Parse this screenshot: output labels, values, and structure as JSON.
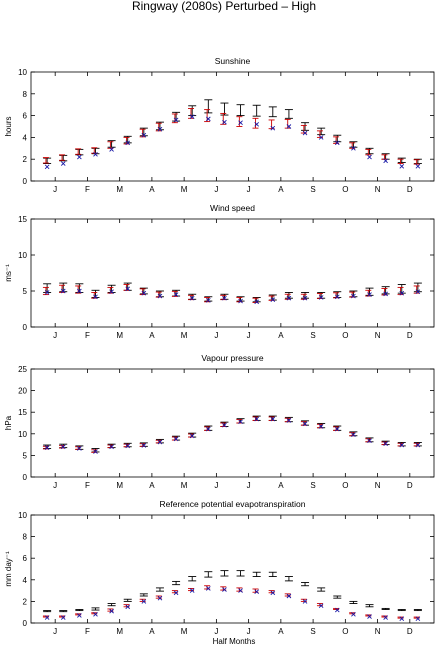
{
  "figure": {
    "title": "Ringway (2080s) Perturbed – High",
    "xlabel": "Half Months"
  },
  "colors": {
    "observed": "#000000",
    "simulated": "#cc0000",
    "perturbed": "#1a1aa6"
  },
  "chart_data": [
    {
      "type": "errorbar",
      "title": "Sunshine",
      "ylabel": "hours",
      "ylim": [
        0,
        10
      ],
      "yticks": [
        "0",
        "2",
        "4",
        "6",
        "8",
        "10"
      ],
      "xticks": [
        "J",
        "F",
        "M",
        "A",
        "M",
        "J",
        "J",
        "A",
        "S",
        "O",
        "N",
        "D"
      ],
      "series": [
        {
          "values": [
            1.85,
            2.1,
            2.65,
            2.75,
            3.4,
            3.8,
            4.5,
            5.05,
            5.9,
            6.45,
            6.85,
            6.6,
            6.5,
            6.45,
            6.35,
            6.15,
            5.0,
            4.55,
            3.9,
            3.35,
            2.75,
            2.25,
            1.9,
            1.8
          ],
          "err": [
            0.25,
            0.25,
            0.25,
            0.25,
            0.3,
            0.3,
            0.35,
            0.35,
            0.4,
            0.45,
            0.6,
            0.55,
            0.5,
            0.5,
            0.45,
            0.4,
            0.35,
            0.3,
            0.3,
            0.25,
            0.25,
            0.25,
            0.2,
            0.2
          ]
        },
        {
          "values": [
            1.9,
            2.15,
            2.7,
            2.8,
            3.3,
            3.7,
            4.4,
            4.95,
            5.75,
            6.2,
            6.0,
            5.7,
            5.45,
            5.3,
            5.2,
            5.25,
            4.75,
            4.3,
            3.75,
            3.25,
            2.65,
            2.2,
            1.8,
            1.75
          ],
          "err": [
            0.25,
            0.25,
            0.25,
            0.25,
            0.3,
            0.3,
            0.35,
            0.35,
            0.4,
            0.45,
            0.55,
            0.5,
            0.45,
            0.45,
            0.4,
            0.4,
            0.35,
            0.3,
            0.3,
            0.25,
            0.25,
            0.2,
            0.2,
            0.2
          ]
        },
        {
          "values": [
            1.3,
            1.6,
            2.2,
            2.45,
            2.9,
            3.5,
            4.2,
            4.75,
            5.6,
            5.9,
            5.7,
            5.4,
            5.35,
            5.2,
            4.85,
            5.0,
            4.4,
            4.0,
            3.5,
            3.0,
            2.2,
            1.85,
            1.35,
            1.35
          ]
        }
      ]
    },
    {
      "type": "errorbar",
      "title": "Wind speed",
      "ylabel": "ms⁻¹",
      "ylim": [
        0,
        15
      ],
      "yticks": [
        "0",
        "5",
        "10",
        "15"
      ],
      "xticks": [
        "J",
        "F",
        "M",
        "A",
        "M",
        "J",
        "J",
        "A",
        "S",
        "O",
        "N",
        "D"
      ],
      "series": [
        {
          "values": [
            5.4,
            5.5,
            5.4,
            4.6,
            5.3,
            5.6,
            5.0,
            4.6,
            4.7,
            4.2,
            3.9,
            4.2,
            3.9,
            3.8,
            4.1,
            4.4,
            4.4,
            4.4,
            4.5,
            4.6,
            4.9,
            5.1,
            5.3,
            5.5
          ],
          "err": [
            0.6,
            0.6,
            0.6,
            0.5,
            0.5,
            0.5,
            0.4,
            0.4,
            0.4,
            0.35,
            0.3,
            0.35,
            0.3,
            0.3,
            0.35,
            0.4,
            0.4,
            0.4,
            0.4,
            0.4,
            0.5,
            0.5,
            0.6,
            0.6
          ]
        },
        {
          "values": [
            5.0,
            5.3,
            5.2,
            4.4,
            5.1,
            5.5,
            4.9,
            4.5,
            4.6,
            4.1,
            3.8,
            4.1,
            3.8,
            3.7,
            4.0,
            4.2,
            4.2,
            4.3,
            4.4,
            4.5,
            4.7,
            4.9,
            5.0,
            5.2
          ],
          "err": [
            0.5,
            0.5,
            0.5,
            0.4,
            0.4,
            0.4,
            0.4,
            0.35,
            0.35,
            0.3,
            0.3,
            0.3,
            0.3,
            0.3,
            0.3,
            0.35,
            0.35,
            0.35,
            0.35,
            0.35,
            0.4,
            0.45,
            0.5,
            0.5
          ]
        },
        {
          "values": [
            4.8,
            5.0,
            5.0,
            4.2,
            4.9,
            5.3,
            4.7,
            4.3,
            4.5,
            4.0,
            3.7,
            4.0,
            3.6,
            3.5,
            3.8,
            4.0,
            4.0,
            4.1,
            4.2,
            4.3,
            4.5,
            4.6,
            4.7,
            4.9
          ]
        }
      ]
    },
    {
      "type": "errorbar",
      "title": "Vapour pressure",
      "ylabel": "hPa",
      "ylim": [
        0,
        25
      ],
      "yticks": [
        "0",
        "5",
        "10",
        "15",
        "20",
        "25"
      ],
      "xticks": [
        "J",
        "F",
        "M",
        "A",
        "M",
        "J",
        "J",
        "A",
        "S",
        "O",
        "N",
        "D"
      ],
      "series": [
        {
          "values": [
            7.0,
            7.2,
            6.8,
            6.2,
            7.2,
            7.4,
            7.5,
            8.3,
            9.0,
            9.7,
            11.3,
            12.2,
            13.0,
            13.6,
            13.6,
            13.3,
            12.5,
            11.9,
            11.3,
            10.0,
            8.6,
            7.9,
            7.6,
            7.6
          ],
          "err": [
            0.4,
            0.4,
            0.4,
            0.4,
            0.4,
            0.4,
            0.4,
            0.4,
            0.45,
            0.45,
            0.5,
            0.5,
            0.5,
            0.5,
            0.5,
            0.5,
            0.5,
            0.5,
            0.5,
            0.45,
            0.45,
            0.4,
            0.4,
            0.4
          ]
        },
        {
          "values": [
            6.8,
            7.0,
            6.7,
            6.0,
            7.1,
            7.3,
            7.4,
            8.2,
            8.9,
            9.6,
            11.2,
            12.1,
            12.9,
            13.5,
            13.5,
            13.2,
            12.4,
            11.8,
            11.2,
            9.9,
            8.5,
            7.8,
            7.5,
            7.5
          ],
          "err": [
            0.3,
            0.3,
            0.3,
            0.3,
            0.3,
            0.3,
            0.3,
            0.3,
            0.35,
            0.35,
            0.4,
            0.4,
            0.4,
            0.4,
            0.4,
            0.4,
            0.4,
            0.4,
            0.4,
            0.35,
            0.35,
            0.3,
            0.3,
            0.3
          ]
        },
        {
          "values": [
            6.8,
            7.0,
            6.6,
            5.9,
            7.0,
            7.2,
            7.3,
            8.1,
            8.8,
            9.5,
            11.1,
            12.0,
            12.8,
            13.4,
            13.4,
            13.1,
            12.3,
            11.7,
            11.1,
            9.8,
            8.4,
            7.7,
            7.4,
            7.4
          ]
        }
      ]
    },
    {
      "type": "errorbar",
      "title": "Reference potential evapotranspiration",
      "ylabel": "mm day⁻¹",
      "ylim": [
        0,
        10
      ],
      "yticks": [
        "0",
        "2",
        "4",
        "6",
        "8",
        "10"
      ],
      "xticks": [
        "J",
        "F",
        "M",
        "A",
        "M",
        "J",
        "J",
        "A",
        "S",
        "O",
        "N",
        "D"
      ],
      "series": [
        {
          "values": [
            1.1,
            1.1,
            1.2,
            1.3,
            1.7,
            2.1,
            2.6,
            3.1,
            3.7,
            4.1,
            4.5,
            4.6,
            4.6,
            4.5,
            4.5,
            4.1,
            3.6,
            3.1,
            2.4,
            1.9,
            1.6,
            1.3,
            1.2,
            1.2
          ],
          "err": [
            0.05,
            0.05,
            0.05,
            0.1,
            0.1,
            0.1,
            0.1,
            0.15,
            0.15,
            0.2,
            0.25,
            0.25,
            0.25,
            0.2,
            0.2,
            0.2,
            0.15,
            0.15,
            0.1,
            0.1,
            0.1,
            0.05,
            0.05,
            0.05
          ]
        },
        {
          "values": [
            0.6,
            0.6,
            0.8,
            0.9,
            1.2,
            1.6,
            2.1,
            2.4,
            2.9,
            3.1,
            3.3,
            3.2,
            3.1,
            3.0,
            2.9,
            2.6,
            2.1,
            1.7,
            1.3,
            0.9,
            0.7,
            0.6,
            0.5,
            0.5
          ],
          "err": [
            0.05,
            0.05,
            0.05,
            0.05,
            0.1,
            0.1,
            0.1,
            0.1,
            0.1,
            0.1,
            0.15,
            0.15,
            0.15,
            0.15,
            0.1,
            0.1,
            0.1,
            0.1,
            0.05,
            0.05,
            0.05,
            0.05,
            0.05,
            0.05
          ]
        },
        {
          "values": [
            0.5,
            0.5,
            0.7,
            0.8,
            1.1,
            1.5,
            2.0,
            2.3,
            2.8,
            3.0,
            3.2,
            3.1,
            3.0,
            2.9,
            2.8,
            2.5,
            2.0,
            1.6,
            1.2,
            0.8,
            0.6,
            0.5,
            0.4,
            0.4
          ]
        }
      ]
    }
  ]
}
